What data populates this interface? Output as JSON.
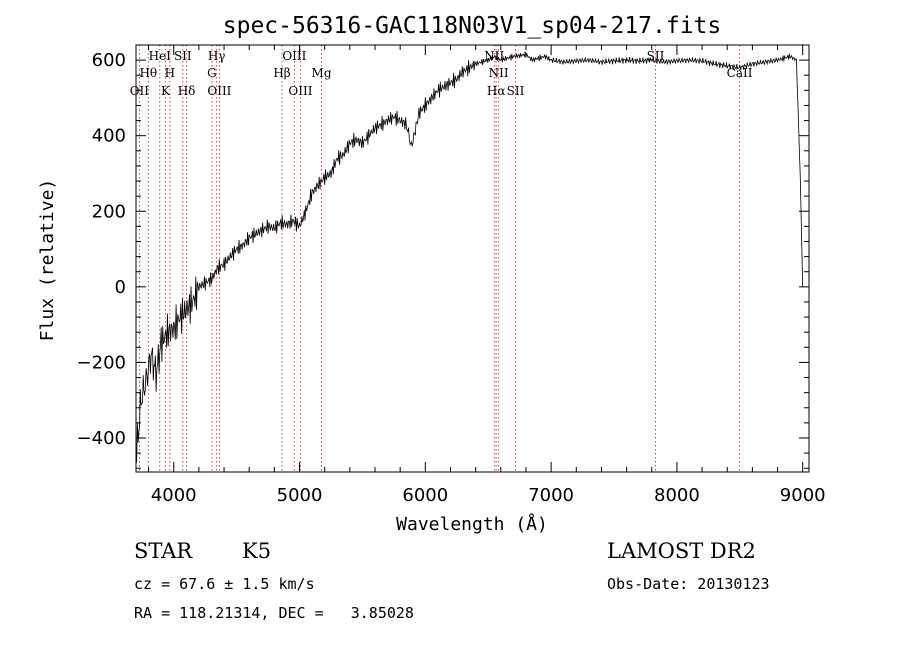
{
  "chart_data": {
    "type": "line",
    "title": "spec-56316-GAC118N03V1_sp04-217.fits",
    "xlabel": "Wavelength (Å)",
    "ylabel": "Flux (relative)",
    "xlim": [
      3700,
      9050
    ],
    "ylim": [
      -490,
      640
    ],
    "xticks": [
      4000,
      5000,
      6000,
      7000,
      8000,
      9000
    ],
    "yticks": [
      -400,
      -200,
      0,
      200,
      400,
      600
    ],
    "grid": false,
    "line_color": "#000000",
    "marker_color": "#c0392b",
    "series": [
      {
        "x": [
          3700,
          3740,
          3780,
          3820,
          3860,
          3900,
          3950,
          4000,
          4050,
          4100,
          4150,
          4200,
          4250,
          4300,
          4350,
          4400,
          4450,
          4500,
          4550,
          4600,
          4650,
          4700,
          4750,
          4800,
          4850,
          4900,
          4950,
          5000,
          5050,
          5100,
          5150,
          5200,
          5250,
          5300,
          5350,
          5400,
          5450,
          5500,
          5550,
          5600,
          5650,
          5700,
          5750,
          5800,
          5850,
          5890,
          5950,
          6000,
          6050,
          6100,
          6150,
          6200,
          6250,
          6300,
          6350,
          6400,
          6450,
          6500,
          6550,
          6600,
          6650,
          6700,
          6750,
          6800,
          6850,
          6900,
          6950,
          7000,
          7100,
          7200,
          7300,
          7400,
          7500,
          7600,
          7700,
          7800,
          7900,
          8000,
          8100,
          8200,
          8300,
          8400,
          8500,
          8600,
          8700,
          8800,
          8850,
          8900,
          8950,
          8980,
          9000
        ],
        "y": [
          -460,
          -300,
          -250,
          -180,
          -230,
          -150,
          -120,
          -110,
          -80,
          -60,
          -40,
          0,
          10,
          20,
          50,
          60,
          80,
          100,
          110,
          130,
          140,
          150,
          160,
          155,
          170,
          165,
          175,
          160,
          200,
          250,
          270,
          290,
          300,
          340,
          350,
          380,
          390,
          380,
          400,
          420,
          430,
          440,
          450,
          440,
          430,
          370,
          460,
          480,
          500,
          520,
          530,
          540,
          550,
          570,
          580,
          590,
          595,
          600,
          610,
          600,
          605,
          610,
          612,
          615,
          600,
          605,
          610,
          600,
          595,
          598,
          600,
          595,
          598,
          600,
          598,
          600,
          595,
          598,
          600,
          598,
          590,
          585,
          580,
          590,
          595,
          600,
          605,
          610,
          600,
          300,
          0
        ]
      }
    ],
    "line_markers": [
      {
        "wave": 3727,
        "label": "OII",
        "row": 2
      },
      {
        "wave": 3798,
        "label": "Hθ",
        "row": 1
      },
      {
        "wave": 3889,
        "label": "HeI",
        "row": 0
      },
      {
        "wave": 3934,
        "label": "K",
        "row": 2
      },
      {
        "wave": 3969,
        "label": "H",
        "row": 1
      },
      {
        "wave": 4072,
        "label": "SII",
        "row": 0
      },
      {
        "wave": 4102,
        "label": "Hδ",
        "row": 2
      },
      {
        "wave": 4304,
        "label": "G",
        "row": 1
      },
      {
        "wave": 4341,
        "label": "Hγ",
        "row": 0
      },
      {
        "wave": 4363,
        "label": "OIII",
        "row": 2
      },
      {
        "wave": 4861,
        "label": "Hβ",
        "row": 1
      },
      {
        "wave": 4959,
        "label": "OIII",
        "row": 0
      },
      {
        "wave": 5007,
        "label": "OIII",
        "row": 2
      },
      {
        "wave": 5175,
        "label": "Mg",
        "row": 1
      },
      {
        "wave": 6548,
        "label": "NII",
        "row": 0
      },
      {
        "wave": 6563,
        "label": "Hα",
        "row": 2
      },
      {
        "wave": 6583,
        "label": "NII",
        "row": 1
      },
      {
        "wave": 6717,
        "label": "SII",
        "row": 2
      },
      {
        "wave": 7830,
        "label": "SII",
        "row": 0
      },
      {
        "wave": 8498,
        "label": "CaII",
        "row": 1
      }
    ]
  },
  "info": {
    "object_class": "STAR",
    "subclass": "K5",
    "survey": "LAMOST DR2",
    "redshift": "cz = 67.6 ± 1.5 km/s",
    "obs_date": "Obs-Date: 20130123",
    "coords": "RA = 118.21314, DEC =   3.85028"
  }
}
